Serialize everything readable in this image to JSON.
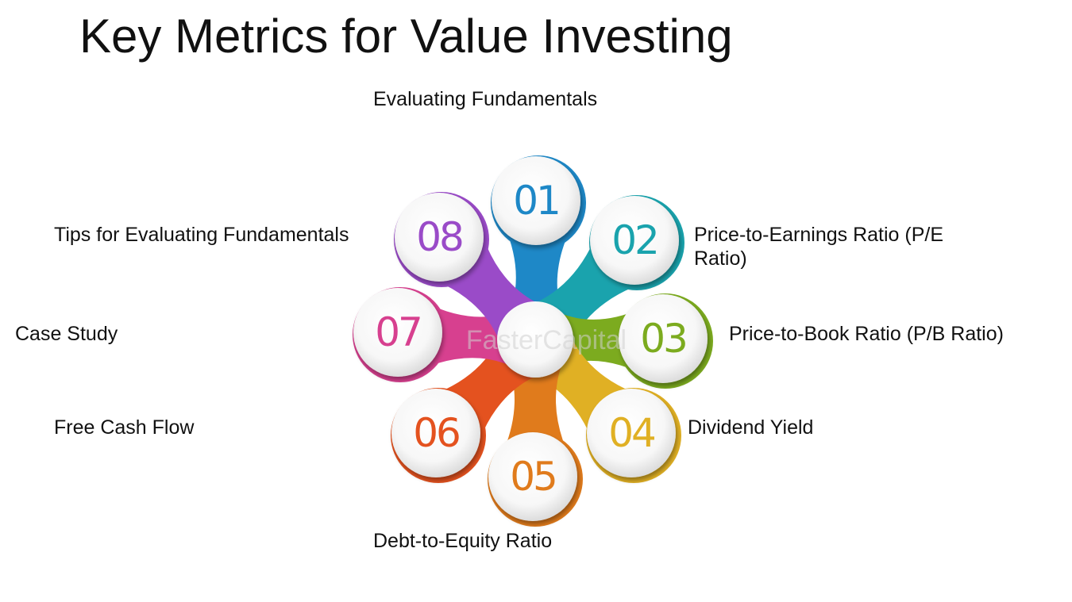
{
  "title": "Key Metrics for Value Investing",
  "watermark": "FasterCapital",
  "items": [
    {
      "number": "01",
      "label": "Evaluating Fundamentals",
      "color": "#1e88c7"
    },
    {
      "number": "02",
      "label": "Price-to-Earnings Ratio (P/E Ratio)",
      "color": "#1aa3ad"
    },
    {
      "number": "03",
      "label": "Price-to-Book Ratio (P/B Ratio)",
      "color": "#7cab1f"
    },
    {
      "number": "04",
      "label": "Dividend Yield",
      "color": "#e0b024"
    },
    {
      "number": "05",
      "label": "Debt-to-Equity Ratio",
      "color": "#e07b1c"
    },
    {
      "number": "06",
      "label": "Free Cash Flow",
      "color": "#e4521f"
    },
    {
      "number": "07",
      "label": "Case Study",
      "color": "#d7408f"
    },
    {
      "number": "08",
      "label": "Tips for Evaluating Fundamentals",
      "color": "#9a4bc8"
    }
  ]
}
